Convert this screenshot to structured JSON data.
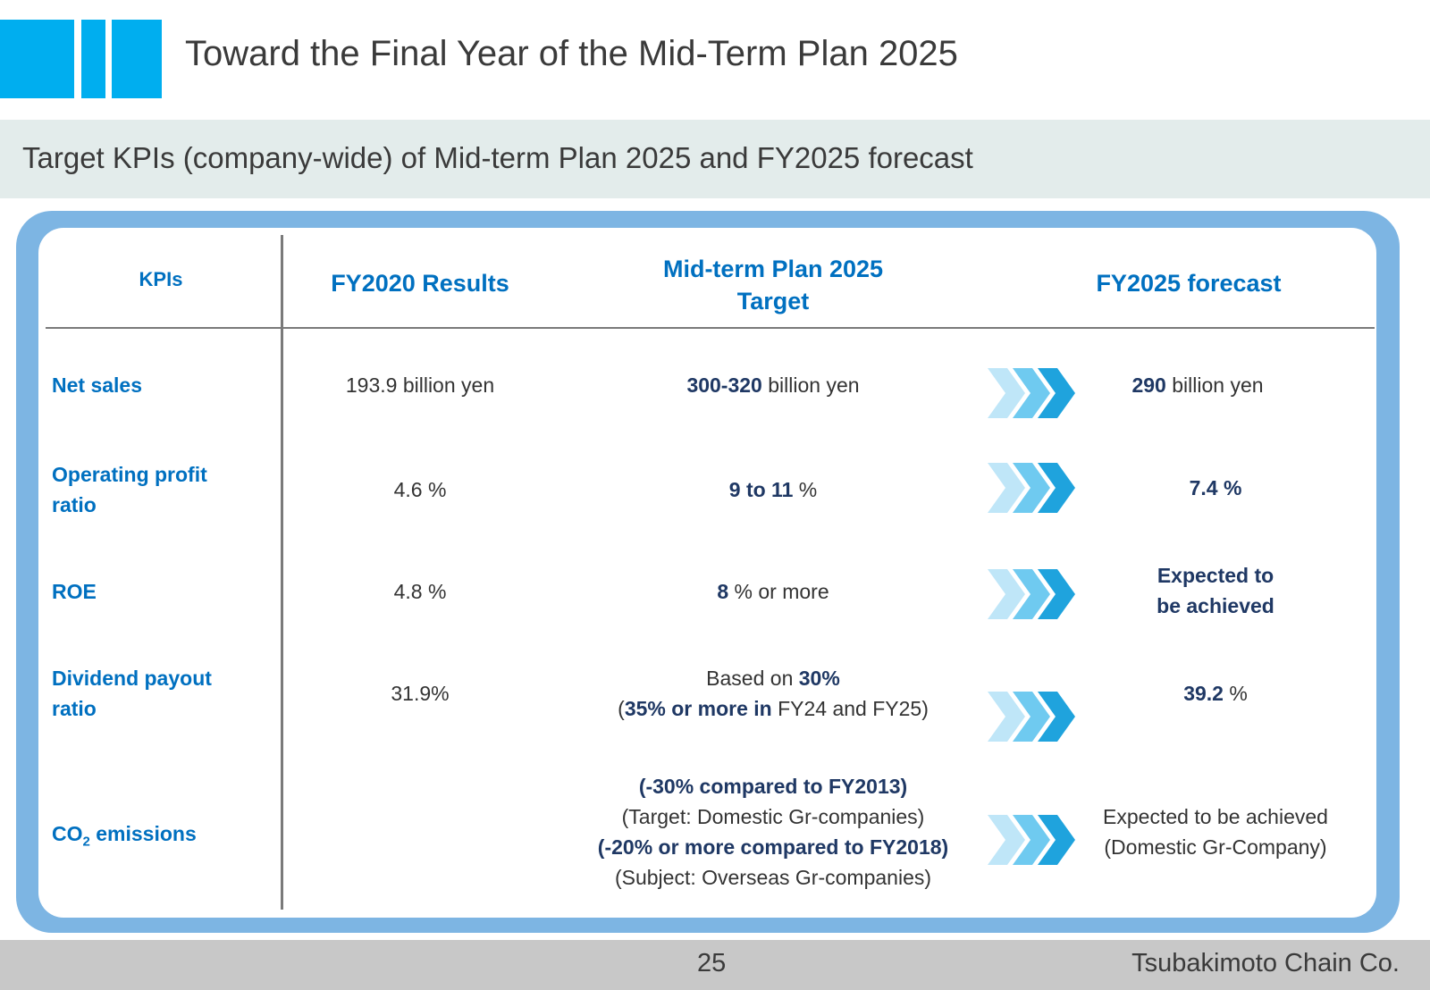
{
  "title": "Toward the Final Year of the Mid-Term Plan 2025",
  "subtitle": "Target KPIs (company-wide) of Mid-term Plan 2025 and FY2025 forecast",
  "headers": {
    "kpi": "KPIs",
    "fy2020": "FY2020 Results",
    "plan_line1": "Mid-term Plan 2025",
    "plan_line2": "Target",
    "forecast": "FY2025 forecast"
  },
  "rows": [
    {
      "kpi_line1": "Net sales",
      "fy2020": "193.9 billion yen",
      "target_bold": "300-320",
      "target_rest": " billion yen",
      "forecast_bold": "290",
      "forecast_rest": " billion yen"
    },
    {
      "kpi_line1": "Operating profit",
      "kpi_line2": "ratio",
      "fy2020": "4.6 %",
      "target_bold": "9 to 11",
      "target_rest": " %",
      "forecast": "7.4 %"
    },
    {
      "kpi_line1": "ROE",
      "fy2020": "4.8 %",
      "target_bold": "8",
      "target_rest": " % or more",
      "forecast_line1": "Expected to",
      "forecast_line2": "be achieved"
    },
    {
      "kpi_line1": "Dividend payout",
      "kpi_line2": "ratio",
      "fy2020": "31.9%",
      "target_l1_pre": "Based on ",
      "target_l1_bold": "30%",
      "target_l2_open": "(",
      "target_l2_bold": "35% or more in",
      "target_l2_rest": " FY24 and FY25)",
      "forecast_bold": "39.2",
      "forecast_rest": " %"
    },
    {
      "kpi_pre": "CO",
      "kpi_sub": "2",
      "kpi_post": " emissions",
      "target_line1": "(-30% compared to FY2013)",
      "target_line2": "(Target: Domestic Gr-companies)",
      "target_line3": "(-20% or more compared to FY2018)",
      "target_line4": "(Subject: Overseas Gr-companies)",
      "forecast_line1": "Expected to be achieved",
      "forecast_line2": "(Domestic Gr-Company)"
    }
  ],
  "footer": {
    "page_number": "25",
    "company": "Tsubakimoto Chain Co."
  },
  "icons": [
    "chevron-arrow-icon"
  ],
  "colors": {
    "accent": "#00aeef",
    "header_text": "#0070c0",
    "frame": "#7db5e3",
    "emphasis": "#1f3864",
    "subtitle_band": "#e3eceb",
    "footer_band": "#c8c8c8"
  }
}
